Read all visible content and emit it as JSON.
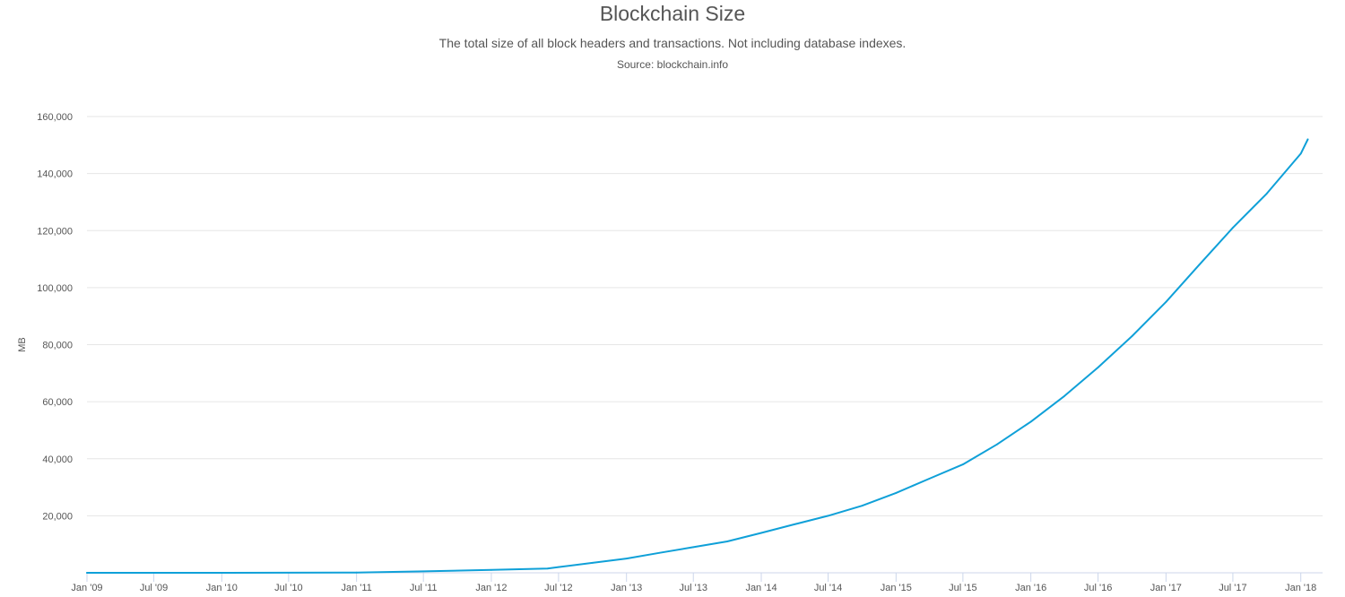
{
  "chart_data": {
    "type": "line",
    "title": "Blockchain Size",
    "subtitle": "The total size of all block headers and transactions. Not including database indexes.",
    "source": "Source: blockchain.info",
    "xlabel": "",
    "ylabel": "MB",
    "ylim": [
      0,
      160000
    ],
    "xlim": [
      "2009-01-01",
      "2018-03-01"
    ],
    "grid": true,
    "legend": "none",
    "yticks": [
      20000,
      40000,
      60000,
      80000,
      100000,
      120000,
      140000,
      160000
    ],
    "ytick_labels": [
      "20,000",
      "40,000",
      "60,000",
      "80,000",
      "100,000",
      "120,000",
      "140,000",
      "160,000"
    ],
    "xticks": [
      "2009-01-01",
      "2009-07-01",
      "2010-01-01",
      "2010-07-01",
      "2011-01-01",
      "2011-07-01",
      "2012-01-01",
      "2012-07-01",
      "2013-01-01",
      "2013-07-01",
      "2014-01-01",
      "2014-07-01",
      "2015-01-01",
      "2015-07-01",
      "2016-01-01",
      "2016-07-01",
      "2017-01-01",
      "2017-07-01",
      "2018-01-01"
    ],
    "xtick_labels": [
      "Jan '09",
      "Jul '09",
      "Jan '10",
      "Jul '10",
      "Jan '11",
      "Jul '11",
      "Jan '12",
      "Jul '12",
      "Jan '13",
      "Jul '13",
      "Jan '14",
      "Jul '14",
      "Jan '15",
      "Jul '15",
      "Jan '16",
      "Jul '16",
      "Jan '17",
      "Jul '17",
      "Jan '18"
    ],
    "series": [
      {
        "color": "#0fa0d8",
        "x": [
          "2009-01-01",
          "2010-01-01",
          "2011-01-01",
          "2011-07-01",
          "2012-01-01",
          "2012-06-01",
          "2012-07-01",
          "2012-10-01",
          "2013-01-01",
          "2013-04-01",
          "2013-07-01",
          "2013-10-01",
          "2014-01-01",
          "2014-04-01",
          "2014-07-01",
          "2014-10-01",
          "2015-01-01",
          "2015-04-01",
          "2015-07-01",
          "2015-10-01",
          "2016-01-01",
          "2016-04-01",
          "2016-07-01",
          "2016-10-01",
          "2017-01-01",
          "2017-04-01",
          "2017-07-01",
          "2017-10-01",
          "2018-01-01",
          "2018-01-20"
        ],
        "y": [
          0,
          10,
          100,
          500,
          1000,
          1500,
          2000,
          3500,
          5000,
          7000,
          9000,
          11000,
          14000,
          17000,
          20000,
          23500,
          28000,
          33000,
          38000,
          45000,
          53000,
          62000,
          72000,
          83000,
          95000,
          108000,
          121000,
          133000,
          147000,
          152000
        ]
      }
    ]
  }
}
